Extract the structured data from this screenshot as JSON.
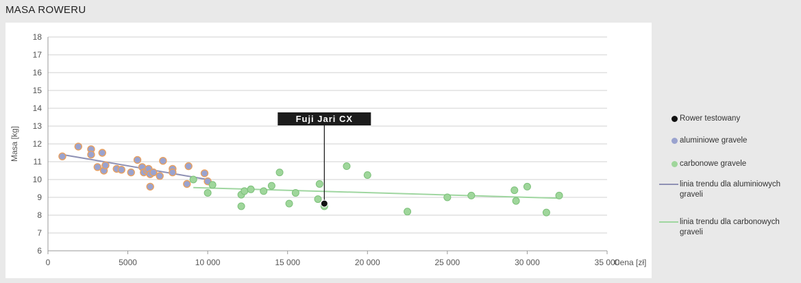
{
  "page_title": "MASA ROWERU",
  "colors": {
    "aluminium_fill": "#9aa3cf",
    "aluminium_stroke": "#e8a060",
    "carbon_fill": "#9fd69b",
    "carbon_stroke": "#7cc07a",
    "tested": "#111111",
    "trend_aluminium": "#8f91b4",
    "trend_carbon": "#9fd6a0",
    "grid": "#d0d0d0"
  },
  "legend": {
    "items": [
      {
        "label": "Rower testowany",
        "kind": "dot",
        "color": "#111111"
      },
      {
        "label": "aluminiowe gravele",
        "kind": "dot",
        "color": "#9aa3cf"
      },
      {
        "label": "carbonowe gravele",
        "kind": "dot",
        "color": "#9fd69b"
      },
      {
        "label": "linia trendu dla aluminiowych graveli",
        "kind": "line",
        "color": "#8f91b4"
      },
      {
        "label": "linia trendu dla carbonowych graveli",
        "kind": "line",
        "color": "#9fd6a0"
      }
    ]
  },
  "chart_data": {
    "type": "scatter",
    "xlabel": "Cena [zł]",
    "ylabel": "Masa [kg]",
    "xlim": [
      0,
      35000
    ],
    "ylim": [
      6,
      18
    ],
    "xticks": [
      0,
      5000,
      10000,
      15000,
      20000,
      25000,
      30000,
      35000
    ],
    "xtick_labels": [
      "0",
      "5000",
      "10 000",
      "15 000",
      "20 000",
      "25 000",
      "30 000",
      "35 000"
    ],
    "yticks": [
      6,
      7,
      8,
      9,
      10,
      11,
      12,
      13,
      14,
      15,
      16,
      17,
      18
    ],
    "grid": "horizontal",
    "legend_position": "right",
    "series": [
      {
        "name": "aluminiowe gravele",
        "points": [
          [
            900,
            11.3
          ],
          [
            1900,
            11.85
          ],
          [
            2700,
            11.7
          ],
          [
            2700,
            11.4
          ],
          [
            3100,
            10.7
          ],
          [
            3400,
            11.5
          ],
          [
            3500,
            10.5
          ],
          [
            3600,
            10.8
          ],
          [
            4300,
            10.6
          ],
          [
            4600,
            10.55
          ],
          [
            5200,
            10.4
          ],
          [
            5600,
            11.1
          ],
          [
            5900,
            10.7
          ],
          [
            6000,
            10.4
          ],
          [
            6200,
            10.5
          ],
          [
            6300,
            10.6
          ],
          [
            6400,
            10.3
          ],
          [
            6400,
            9.6
          ],
          [
            6600,
            10.4
          ],
          [
            7000,
            10.2
          ],
          [
            7200,
            11.05
          ],
          [
            7800,
            10.6
          ],
          [
            7800,
            10.4
          ],
          [
            8700,
            9.75
          ],
          [
            8800,
            10.75
          ],
          [
            9800,
            10.35
          ],
          [
            10000,
            9.9
          ]
        ]
      },
      {
        "name": "carbonowe gravele",
        "points": [
          [
            9100,
            10.0
          ],
          [
            10000,
            9.25
          ],
          [
            10300,
            9.7
          ],
          [
            12100,
            9.15
          ],
          [
            12100,
            8.5
          ],
          [
            12300,
            9.35
          ],
          [
            12700,
            9.45
          ],
          [
            13500,
            9.35
          ],
          [
            14000,
            9.65
          ],
          [
            14500,
            10.4
          ],
          [
            15100,
            8.65
          ],
          [
            15500,
            9.25
          ],
          [
            16900,
            8.9
          ],
          [
            17000,
            9.75
          ],
          [
            17300,
            8.5
          ],
          [
            18700,
            10.75
          ],
          [
            20000,
            10.25
          ],
          [
            22500,
            8.2
          ],
          [
            25000,
            9.0
          ],
          [
            26500,
            9.1
          ],
          [
            29200,
            9.4
          ],
          [
            29300,
            8.8
          ],
          [
            30000,
            9.6
          ],
          [
            31200,
            8.15
          ],
          [
            32000,
            9.1
          ]
        ]
      },
      {
        "name": "Rower testowany",
        "points": [
          [
            17300,
            8.65
          ]
        ],
        "annotation": "Fuji Jari CX"
      }
    ],
    "trendlines": [
      {
        "name": "linia trendu dla aluminiowych graveli",
        "from": [
          900,
          11.4
        ],
        "to": [
          10000,
          10.0
        ]
      },
      {
        "name": "linia trendu dla carbonowych graveli",
        "from": [
          9100,
          9.55
        ],
        "to": [
          32000,
          8.95
        ]
      }
    ]
  }
}
